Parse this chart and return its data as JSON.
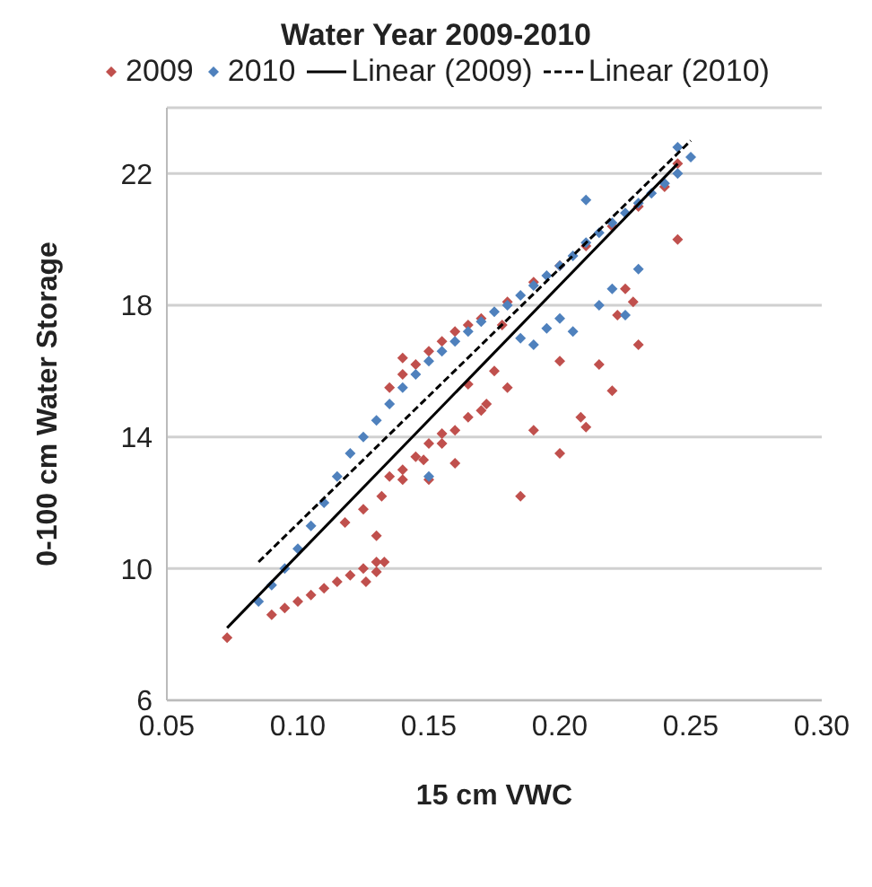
{
  "chart_data": {
    "type": "scatter",
    "title": "Water Year 2009-2010",
    "xlabel": "15 cm VWC",
    "ylabel": "0-100 cm  Water Storage",
    "xlim": [
      0.05,
      0.3
    ],
    "xticks": [
      {
        "value": 0.05,
        "label": "0.05"
      },
      {
        "value": 0.1,
        "label": "0.10"
      },
      {
        "value": 0.15,
        "label": "0.15"
      },
      {
        "value": 0.2,
        "label": "0.20"
      },
      {
        "value": 0.25,
        "label": "0.25"
      },
      {
        "value": 0.3,
        "label": "0.30"
      }
    ],
    "ylim": [
      6,
      24
    ],
    "yticks": [
      6,
      10,
      14,
      18,
      22
    ],
    "grid": "y",
    "legend": "top",
    "marker": "diamond",
    "series": [
      {
        "name": "2009",
        "color": "#c0504d",
        "x": [
          0.073,
          0.09,
          0.095,
          0.1,
          0.105,
          0.11,
          0.115,
          0.12,
          0.125,
          0.13,
          0.133,
          0.126,
          0.13,
          0.118,
          0.125,
          0.132,
          0.14,
          0.148,
          0.155,
          0.16,
          0.165,
          0.172,
          0.18,
          0.135,
          0.14,
          0.145,
          0.15,
          0.155,
          0.135,
          0.14,
          0.145,
          0.15,
          0.155,
          0.16,
          0.165,
          0.17,
          0.178,
          0.18,
          0.19,
          0.2,
          0.21,
          0.22,
          0.23,
          0.24,
          0.245,
          0.2,
          0.21,
          0.22,
          0.225,
          0.23,
          0.245,
          0.185,
          0.19,
          0.2,
          0.175,
          0.165,
          0.15,
          0.16,
          0.14,
          0.13,
          0.208,
          0.215,
          0.222,
          0.228,
          0.17
        ],
        "values": [
          7.9,
          8.6,
          8.8,
          9.0,
          9.2,
          9.4,
          9.6,
          9.8,
          10.0,
          10.2,
          10.2,
          9.6,
          9.9,
          11.4,
          11.8,
          12.2,
          12.7,
          13.3,
          13.8,
          14.2,
          14.6,
          15.0,
          15.5,
          12.8,
          13.0,
          13.4,
          13.8,
          14.1,
          15.5,
          15.9,
          16.2,
          16.6,
          16.9,
          17.2,
          17.4,
          17.6,
          17.4,
          18.1,
          18.7,
          19.2,
          19.8,
          20.4,
          21.0,
          21.6,
          22.3,
          13.5,
          14.3,
          15.4,
          18.5,
          16.8,
          20.0,
          12.2,
          14.2,
          16.3,
          16.0,
          15.6,
          12.7,
          13.2,
          16.4,
          11.0,
          14.6,
          16.2,
          17.7,
          18.1,
          14.8
        ]
      },
      {
        "name": "2010",
        "color": "#4f81bd",
        "x": [
          0.085,
          0.09,
          0.095,
          0.1,
          0.105,
          0.11,
          0.115,
          0.12,
          0.125,
          0.13,
          0.135,
          0.14,
          0.145,
          0.15,
          0.155,
          0.16,
          0.165,
          0.17,
          0.175,
          0.18,
          0.185,
          0.19,
          0.195,
          0.2,
          0.205,
          0.21,
          0.215,
          0.22,
          0.225,
          0.23,
          0.235,
          0.24,
          0.245,
          0.25,
          0.15,
          0.19,
          0.195,
          0.2,
          0.205,
          0.215,
          0.22,
          0.225,
          0.23,
          0.185,
          0.21,
          0.245
        ],
        "values": [
          9.0,
          9.5,
          10.0,
          10.6,
          11.3,
          12.0,
          12.8,
          13.5,
          14.0,
          14.5,
          15.0,
          15.5,
          15.9,
          16.3,
          16.6,
          16.9,
          17.2,
          17.5,
          17.8,
          18.0,
          18.3,
          18.6,
          18.9,
          19.2,
          19.5,
          19.9,
          20.2,
          20.5,
          20.8,
          21.1,
          21.4,
          21.7,
          22.0,
          22.5,
          12.8,
          16.8,
          17.3,
          17.6,
          17.2,
          18.0,
          18.5,
          17.7,
          19.1,
          17.0,
          21.2,
          22.8
        ]
      },
      {
        "name": "Linear (2009)",
        "type": "line",
        "color": "#000000",
        "line_style": "solid",
        "marker": "none",
        "x": [
          0.073,
          0.245
        ],
        "values": [
          8.2,
          22.3
        ]
      },
      {
        "name": "Linear (2010)",
        "type": "line",
        "color": "#000000",
        "line_style": "dashed",
        "marker": "none",
        "x": [
          0.085,
          0.25
        ],
        "values": [
          10.2,
          23.0
        ]
      }
    ]
  }
}
